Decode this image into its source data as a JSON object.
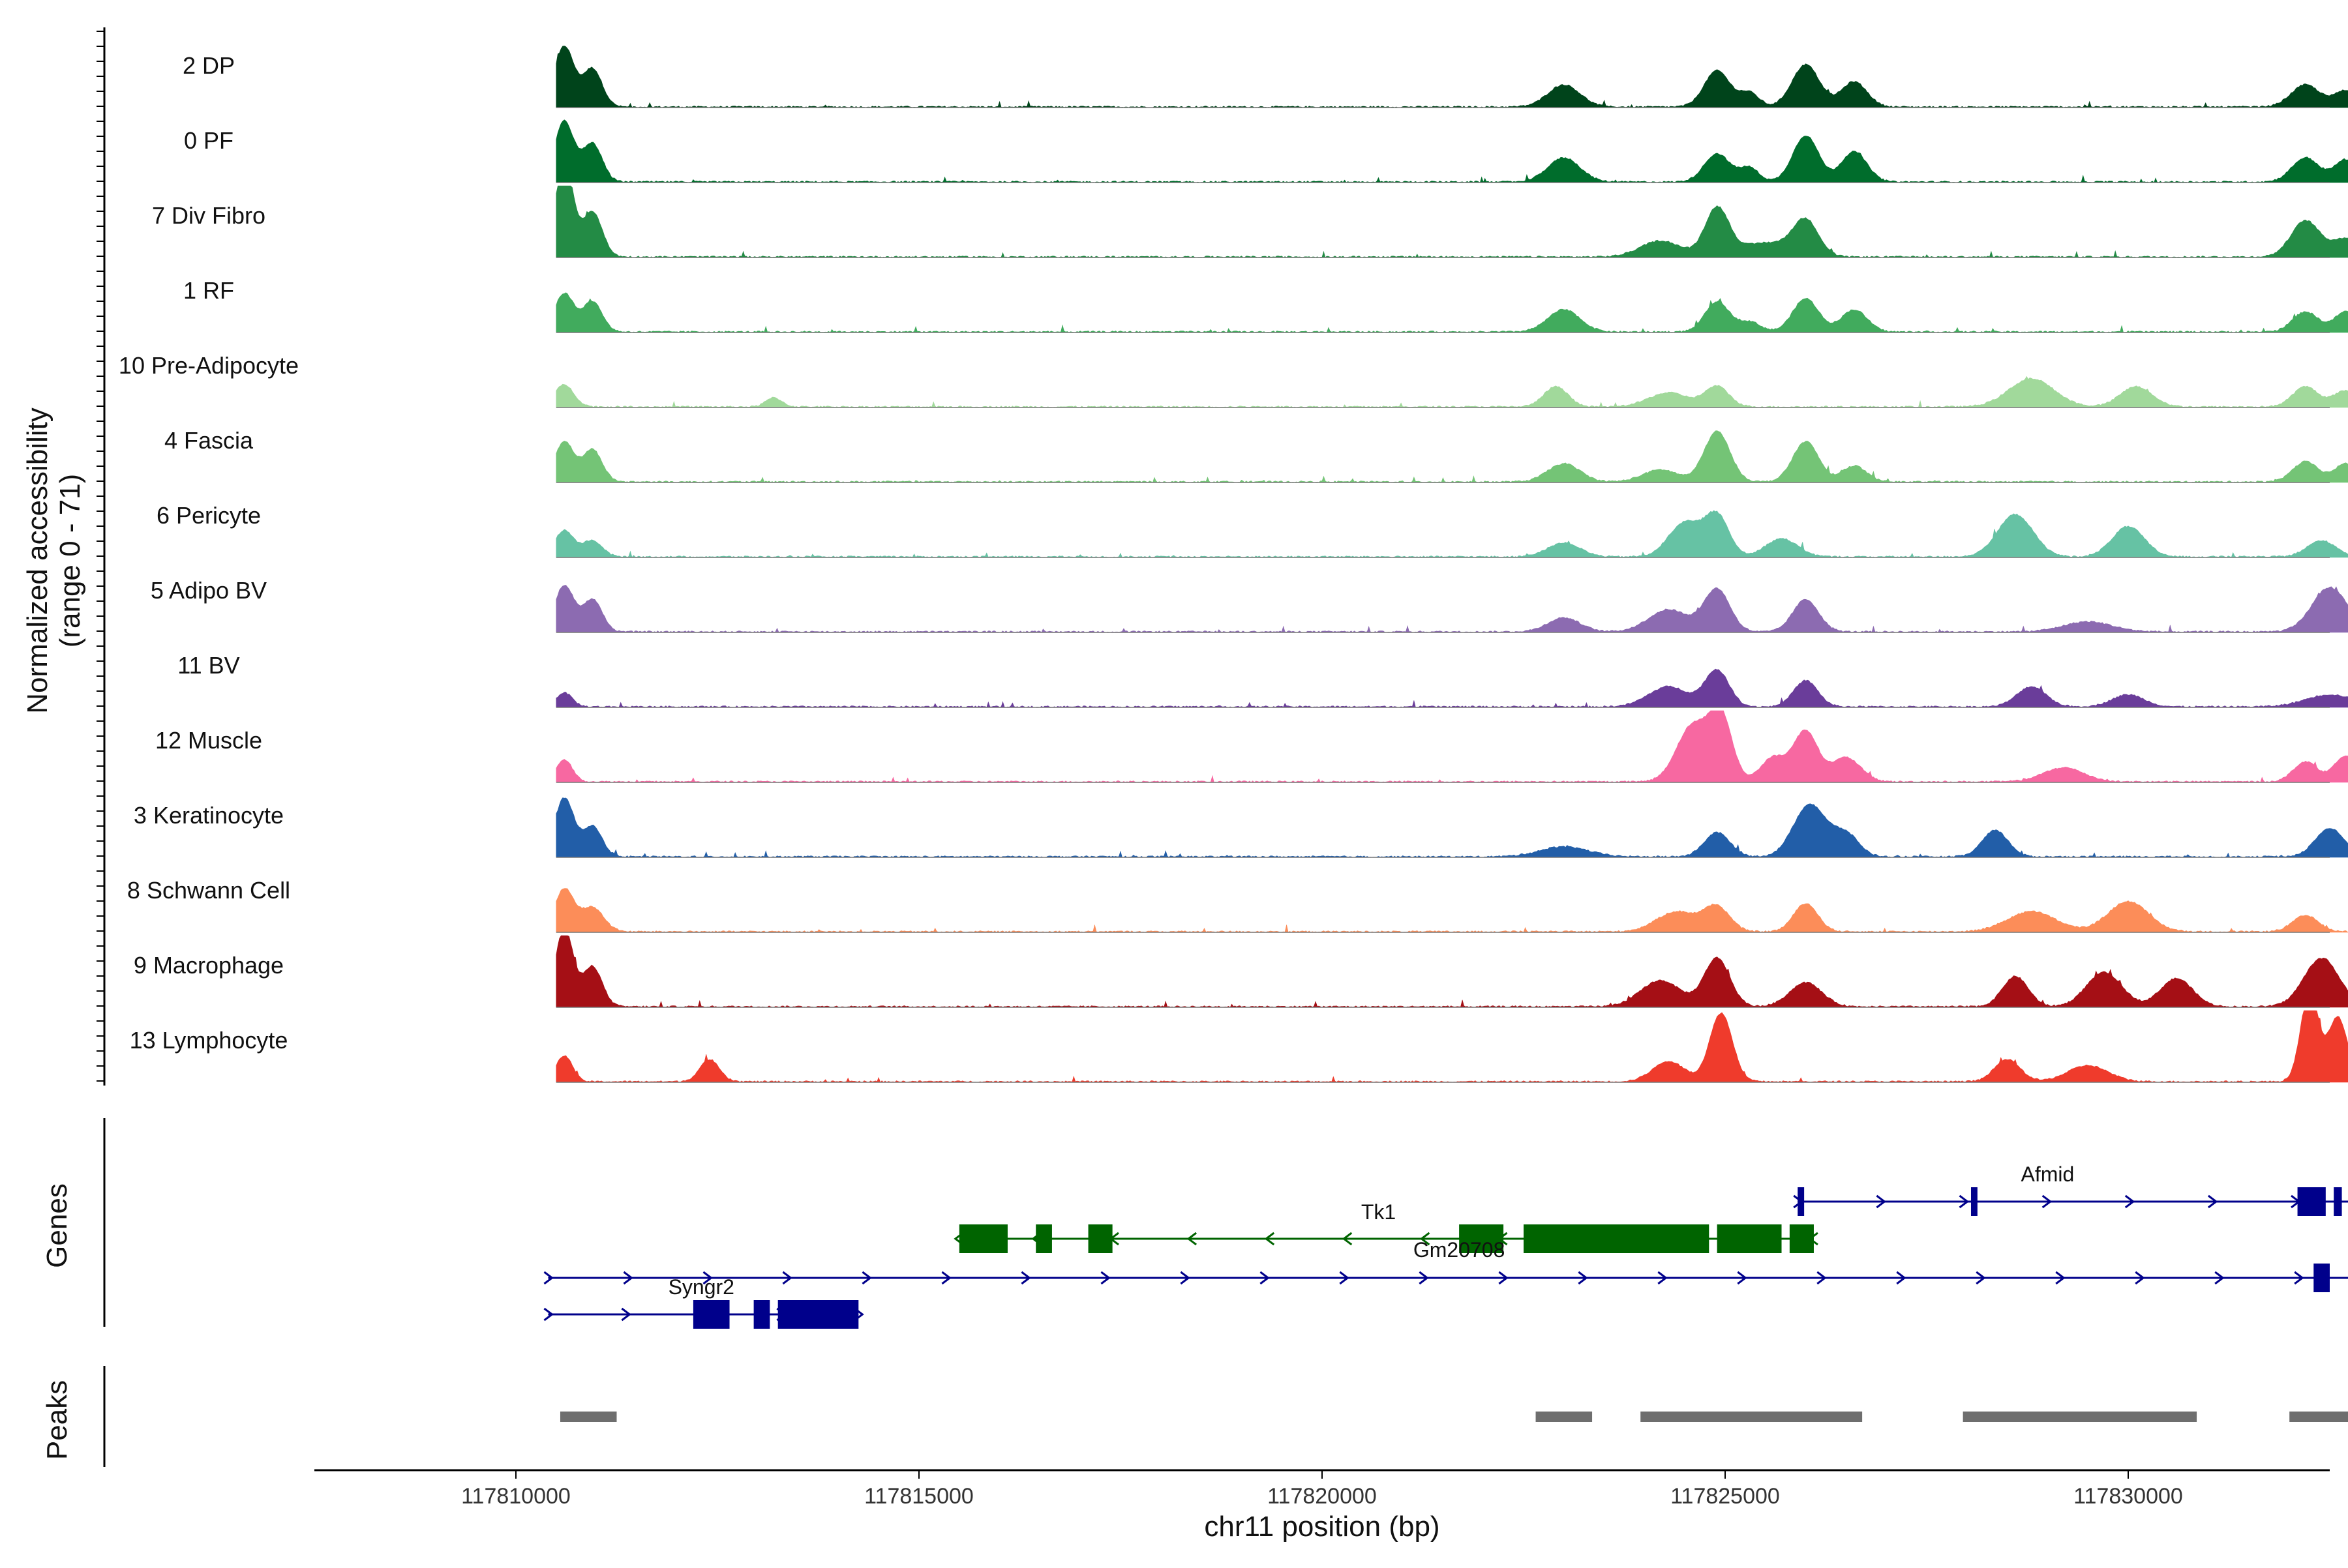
{
  "chart_data": {
    "type": "area",
    "ylabel": "Normalized accessibility\n(range 0 - 71)",
    "ylabel_lines": [
      "Normalized accessibility",
      "(range 0 - 71)"
    ],
    "y_range": [
      0,
      71
    ],
    "xlabel": "chr11 position (bp)",
    "xlim": [
      117807500,
      117832500
    ],
    "x_ticks": [
      117810000,
      117815000,
      117820000,
      117825000,
      117830000
    ],
    "x_tick_labels": [
      "117810000",
      "117815000",
      "117820000",
      "117825000",
      "117830000"
    ],
    "region": [
      117810500,
      117833000
    ],
    "series": [
      {
        "name": "2 DP",
        "color": "#00441b",
        "peaks": [
          [
            117810600,
            60,
            120
          ],
          [
            117810950,
            38,
            120
          ],
          [
            117823000,
            22,
            200
          ],
          [
            117824900,
            36,
            160
          ],
          [
            117826000,
            42,
            170
          ],
          [
            117826600,
            25,
            160
          ],
          [
            117825300,
            14,
            120
          ],
          [
            117832200,
            22,
            180
          ],
          [
            117832700,
            16,
            140
          ]
        ]
      },
      {
        "name": "0 PF",
        "color": "#006d2c",
        "peaks": [
          [
            117810600,
            60,
            120
          ],
          [
            117810950,
            38,
            120
          ],
          [
            117823000,
            24,
            200
          ],
          [
            117824900,
            28,
            160
          ],
          [
            117826000,
            46,
            160
          ],
          [
            117826600,
            30,
            160
          ],
          [
            117825300,
            14,
            120
          ],
          [
            117832200,
            24,
            170
          ],
          [
            117832700,
            22,
            140
          ]
        ]
      },
      {
        "name": "7 Div Fibro",
        "color": "#238b45",
        "peaks": [
          [
            117810600,
            95,
            110
          ],
          [
            117810950,
            45,
            120
          ],
          [
            117824900,
            48,
            150
          ],
          [
            117826000,
            35,
            160
          ],
          [
            117824200,
            16,
            250
          ],
          [
            117825500,
            14,
            300
          ],
          [
            117832200,
            36,
            180
          ],
          [
            117832700,
            18,
            160
          ]
        ]
      },
      {
        "name": "1 RF",
        "color": "#41ab5d",
        "peaks": [
          [
            117810600,
            38,
            120
          ],
          [
            117810950,
            30,
            120
          ],
          [
            117823000,
            22,
            200
          ],
          [
            117824900,
            30,
            150
          ],
          [
            117826000,
            33,
            160
          ],
          [
            117826600,
            22,
            160
          ],
          [
            117825300,
            10,
            140
          ],
          [
            117832200,
            20,
            160
          ],
          [
            117832700,
            20,
            140
          ]
        ]
      },
      {
        "name": "10 Pre-Adipocyte",
        "color": "#a1d99b",
        "peaks": [
          [
            117810600,
            22,
            120
          ],
          [
            117813200,
            9,
            100
          ],
          [
            117822900,
            20,
            150
          ],
          [
            117824300,
            14,
            250
          ],
          [
            117824900,
            20,
            150
          ],
          [
            117828800,
            28,
            280
          ],
          [
            117830100,
            20,
            200
          ],
          [
            117832200,
            20,
            160
          ],
          [
            117832700,
            16,
            150
          ]
        ]
      },
      {
        "name": "4 Fascia",
        "color": "#74c476",
        "peaks": [
          [
            117810600,
            40,
            120
          ],
          [
            117810950,
            32,
            120
          ],
          [
            117823000,
            18,
            200
          ],
          [
            117824900,
            50,
            160
          ],
          [
            117824200,
            12,
            220
          ],
          [
            117826000,
            40,
            160
          ],
          [
            117826600,
            16,
            150
          ],
          [
            117832200,
            20,
            160
          ],
          [
            117832700,
            18,
            140
          ]
        ]
      },
      {
        "name": "6 Pericyte",
        "color": "#66c2a4",
        "peaks": [
          [
            117810600,
            26,
            120
          ],
          [
            117810950,
            16,
            120
          ],
          [
            117823000,
            14,
            200
          ],
          [
            117824500,
            34,
            200
          ],
          [
            117824900,
            40,
            150
          ],
          [
            117825700,
            18,
            200
          ],
          [
            117828600,
            42,
            220
          ],
          [
            117830000,
            30,
            200
          ],
          [
            117832400,
            16,
            180
          ]
        ]
      },
      {
        "name": "5 Adipo BV",
        "color": "#8c6bb1",
        "peaks": [
          [
            117810600,
            46,
            120
          ],
          [
            117810950,
            32,
            120
          ],
          [
            117823000,
            14,
            200
          ],
          [
            117824300,
            22,
            250
          ],
          [
            117824900,
            42,
            160
          ],
          [
            117826000,
            32,
            160
          ],
          [
            117829500,
            10,
            300
          ],
          [
            117832500,
            44,
            220
          ]
        ]
      },
      {
        "name": "11 BV",
        "color": "#6a3d9a",
        "peaks": [
          [
            117810600,
            14,
            100
          ],
          [
            117824300,
            20,
            250
          ],
          [
            117824900,
            36,
            150
          ],
          [
            117826000,
            26,
            150
          ],
          [
            117828800,
            20,
            180
          ],
          [
            117830000,
            12,
            200
          ],
          [
            117832500,
            12,
            300
          ]
        ]
      },
      {
        "name": "12 Muscle",
        "color": "#f768a1",
        "peaks": [
          [
            117810600,
            22,
            100
          ],
          [
            117824600,
            56,
            200
          ],
          [
            117824950,
            62,
            140
          ],
          [
            117825600,
            24,
            160
          ],
          [
            117826000,
            50,
            150
          ],
          [
            117826500,
            24,
            180
          ],
          [
            117829200,
            14,
            250
          ],
          [
            117832200,
            20,
            150
          ],
          [
            117832700,
            26,
            140
          ]
        ]
      },
      {
        "name": "3 Keratinocyte",
        "color": "#225ea8",
        "peaks": [
          [
            117810600,
            58,
            120
          ],
          [
            117810950,
            30,
            120
          ],
          [
            117823000,
            10,
            300
          ],
          [
            117824900,
            24,
            160
          ],
          [
            117826050,
            52,
            200
          ],
          [
            117826500,
            22,
            160
          ],
          [
            117828350,
            26,
            160
          ],
          [
            117832500,
            28,
            180
          ]
        ]
      },
      {
        "name": "8 Schwann Cell",
        "color": "#fc8d59",
        "peaks": [
          [
            117810600,
            42,
            120
          ],
          [
            117810950,
            24,
            140
          ],
          [
            117824400,
            20,
            250
          ],
          [
            117824900,
            24,
            160
          ],
          [
            117826000,
            28,
            150
          ],
          [
            117828800,
            20,
            300
          ],
          [
            117830000,
            30,
            250
          ],
          [
            117832200,
            16,
            160
          ]
        ]
      },
      {
        "name": "9 Macrophage",
        "color": "#a50f15",
        "peaks": [
          [
            117810600,
            78,
            110
          ],
          [
            117810950,
            40,
            120
          ],
          [
            117824200,
            26,
            250
          ],
          [
            117824900,
            48,
            160
          ],
          [
            117826000,
            24,
            200
          ],
          [
            117828600,
            30,
            160
          ],
          [
            117829700,
            34,
            220
          ],
          [
            117830600,
            28,
            200
          ],
          [
            117832400,
            48,
            220
          ]
        ]
      },
      {
        "name": "13 Lymphocyte",
        "color": "#ef3b2c",
        "peaks": [
          [
            117810600,
            26,
            100
          ],
          [
            117812400,
            22,
            120
          ],
          [
            117824300,
            20,
            200
          ],
          [
            117824950,
            68,
            140
          ],
          [
            117828500,
            22,
            160
          ],
          [
            117829500,
            16,
            250
          ],
          [
            117832250,
            90,
            110
          ],
          [
            117832600,
            64,
            120
          ]
        ]
      }
    ]
  },
  "genes_panel": {
    "title": "Genes",
    "colors": {
      "plus": "#00008b",
      "minus": "#006400"
    },
    "genes": [
      {
        "name": "Afmid",
        "strand": "+",
        "start": 117825900,
        "end": 117833100,
        "exons": [
          [
            117825900,
            117825980
          ],
          [
            117828050,
            117828130
          ],
          [
            117832100,
            117832450
          ],
          [
            117832550,
            117832650
          ]
        ]
      },
      {
        "name": "Tk1",
        "strand": "-",
        "start": 117815500,
        "end": 117826100,
        "exons": [
          [
            117815500,
            117816100
          ],
          [
            117816450,
            117816650
          ],
          [
            117817100,
            117817400
          ],
          [
            117821700,
            117822250
          ],
          [
            117822500,
            117824800
          ],
          [
            117824900,
            117825700
          ],
          [
            117825800,
            117826100
          ]
        ]
      },
      {
        "name": "Gm20708",
        "strand": "+",
        "start": 117810400,
        "end": 117833100,
        "exons": [
          [
            117832300,
            117832500
          ]
        ]
      },
      {
        "name": "Syngr2",
        "strand": "+",
        "start": 117810400,
        "end": 117814250,
        "exons": [
          [
            117812200,
            117812650
          ],
          [
            117812950,
            117813150
          ],
          [
            117813250,
            117814250
          ]
        ]
      }
    ]
  },
  "peaks_panel": {
    "title": "Peaks",
    "color": "#6e6e6e",
    "regions": [
      [
        117810550,
        117811250
      ],
      [
        117822650,
        117823350
      ],
      [
        117823950,
        117826700
      ],
      [
        117827950,
        117830850
      ],
      [
        117832000,
        117832950
      ]
    ]
  }
}
